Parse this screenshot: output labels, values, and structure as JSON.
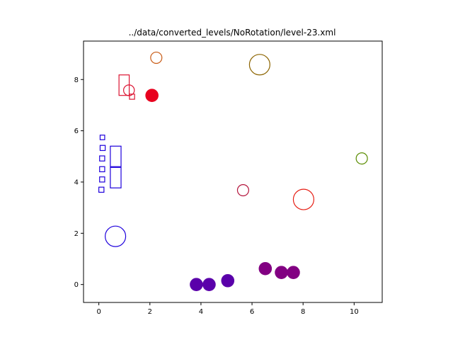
{
  "chart_data": {
    "type": "scatter",
    "title": "../data/converted_levels/NoRotation/level-23.xml",
    "xlabel": "",
    "ylabel": "",
    "xlim": [
      -0.6,
      11.1
    ],
    "ylim": [
      -0.7,
      9.5
    ],
    "xticks": [
      0,
      2,
      4,
      6,
      8,
      10
    ],
    "yticks": [
      0,
      2,
      4,
      6,
      8
    ],
    "grid": false,
    "circles": [
      {
        "x": 2.25,
        "y": 8.85,
        "r": 0.22,
        "color": "#c85a14",
        "filled": false
      },
      {
        "x": 6.3,
        "y": 8.58,
        "r": 0.4,
        "color": "#8c6400",
        "filled": false
      },
      {
        "x": 1.18,
        "y": 7.58,
        "r": 0.21,
        "color": "#dc1432",
        "filled": false
      },
      {
        "x": 2.08,
        "y": 7.38,
        "r": 0.24,
        "color": "#e8001e",
        "filled": true
      },
      {
        "x": 10.3,
        "y": 4.92,
        "r": 0.22,
        "color": "#5a8c00",
        "filled": false
      },
      {
        "x": 5.65,
        "y": 3.68,
        "r": 0.22,
        "color": "#b4143c",
        "filled": false
      },
      {
        "x": 8.02,
        "y": 3.32,
        "r": 0.4,
        "color": "#e61e14",
        "filled": false
      },
      {
        "x": 0.65,
        "y": 1.88,
        "r": 0.4,
        "color": "#1e00dc",
        "filled": false
      },
      {
        "x": 3.82,
        "y": 0.0,
        "r": 0.24,
        "color": "#5a00aa",
        "filled": true
      },
      {
        "x": 4.32,
        "y": 0.0,
        "r": 0.24,
        "color": "#5a00aa",
        "filled": true
      },
      {
        "x": 5.05,
        "y": 0.15,
        "r": 0.24,
        "color": "#5a00aa",
        "filled": true
      },
      {
        "x": 6.52,
        "y": 0.62,
        "r": 0.24,
        "color": "#820082",
        "filled": true
      },
      {
        "x": 7.15,
        "y": 0.47,
        "r": 0.24,
        "color": "#820082",
        "filled": true
      },
      {
        "x": 7.62,
        "y": 0.47,
        "r": 0.24,
        "color": "#820082",
        "filled": true
      }
    ],
    "rects": [
      {
        "x": 0.79,
        "y": 7.38,
        "w": 0.4,
        "h": 0.8,
        "color": "#dc1432"
      },
      {
        "x": 1.2,
        "y": 7.23,
        "w": 0.2,
        "h": 0.2,
        "color": "#dc1432"
      },
      {
        "x": 0.05,
        "y": 5.65,
        "w": 0.18,
        "h": 0.18,
        "color": "#1e00dc"
      },
      {
        "x": 0.05,
        "y": 5.23,
        "w": 0.2,
        "h": 0.2,
        "color": "#1e00dc"
      },
      {
        "x": 0.03,
        "y": 4.82,
        "w": 0.2,
        "h": 0.2,
        "color": "#1e00dc"
      },
      {
        "x": 0.03,
        "y": 4.4,
        "w": 0.2,
        "h": 0.2,
        "color": "#1e00dc"
      },
      {
        "x": 0.03,
        "y": 4.0,
        "w": 0.2,
        "h": 0.2,
        "color": "#1e00dc"
      },
      {
        "x": 0.0,
        "y": 3.6,
        "w": 0.2,
        "h": 0.2,
        "color": "#1e00dc"
      },
      {
        "x": 0.45,
        "y": 4.6,
        "w": 0.42,
        "h": 0.8,
        "color": "#1e00dc"
      },
      {
        "x": 0.45,
        "y": 3.77,
        "w": 0.42,
        "h": 0.8,
        "color": "#1e00dc"
      }
    ]
  }
}
